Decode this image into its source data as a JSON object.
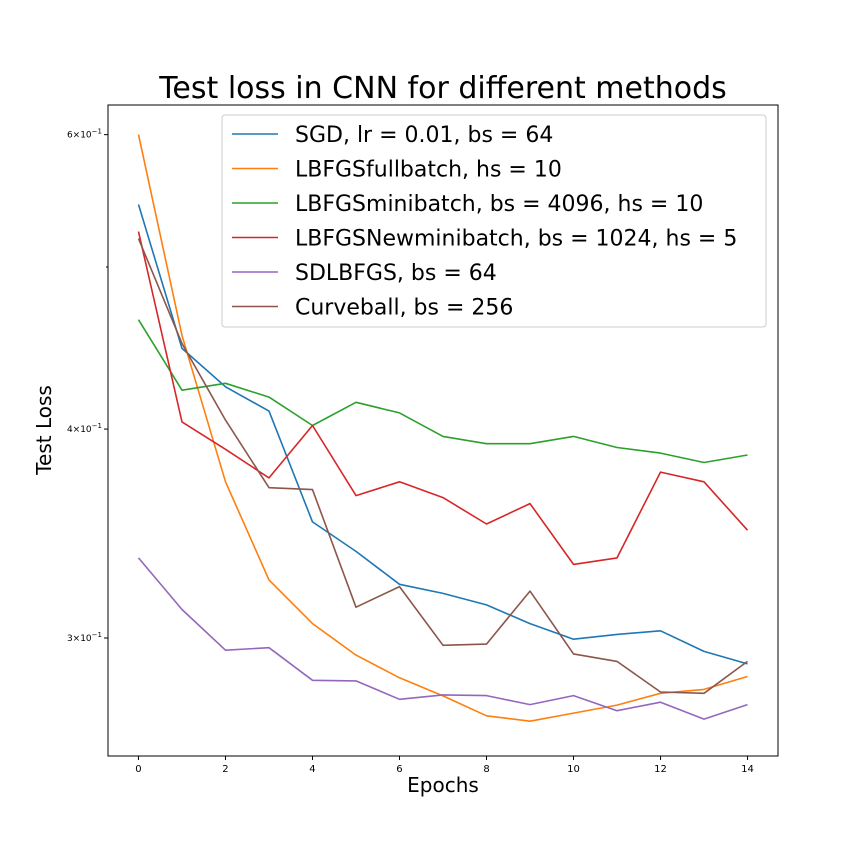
{
  "chart_data": {
    "type": "line",
    "title": "Test loss in CNN for different methods",
    "xlabel": "Epochs",
    "ylabel": "Test Loss",
    "y_scale": "log",
    "xlim": [
      -0.7,
      14.7
    ],
    "ylim": [
      0.255,
      0.625
    ],
    "grid": false,
    "legend_position": "top-right",
    "x_ticks": [
      0,
      2,
      4,
      6,
      8,
      10,
      12,
      14
    ],
    "x_tick_labels": [
      "0",
      "2",
      "4",
      "6",
      "8",
      "10",
      "12",
      "14"
    ],
    "y_major_ticks": [
      {
        "value": 0.3,
        "label_base": "3×10",
        "label_exp": "−1"
      },
      {
        "value": 0.4,
        "label_base": "4×10",
        "label_exp": "−1"
      },
      {
        "value": 0.6,
        "label_base": "6×10",
        "label_exp": "−1"
      }
    ],
    "y_minor_ticks": [
      0.5
    ],
    "x": [
      0,
      1,
      2,
      3,
      4,
      5,
      6,
      7,
      8,
      9,
      10,
      11,
      12,
      13,
      14
    ],
    "series": [
      {
        "name": "SGD, lr = 0.01, bs = 64",
        "color": "#1f77b4",
        "values": [
          0.545,
          0.447,
          0.424,
          0.41,
          0.352,
          0.338,
          0.323,
          0.319,
          0.314,
          0.306,
          0.2995,
          0.3015,
          0.303,
          0.2945,
          0.2895
        ]
      },
      {
        "name": "LBFGSfullbatch, hs = 10",
        "color": "#ff7f0e",
        "values": [
          0.6,
          0.455,
          0.372,
          0.325,
          0.306,
          0.293,
          0.284,
          0.277,
          0.2695,
          0.2675,
          0.2705,
          0.2735,
          0.278,
          0.2795,
          0.2845
        ]
      },
      {
        "name": "LBFGSminibatch, bs = 4096, hs = 10",
        "color": "#2ca02c",
        "values": [
          0.465,
          0.422,
          0.426,
          0.418,
          0.402,
          0.415,
          0.409,
          0.396,
          0.392,
          0.392,
          0.396,
          0.39,
          0.387,
          0.382,
          0.386
        ]
      },
      {
        "name": "LBFGSNewminibatch, bs = 1024, hs = 5",
        "color": "#d62728",
        "values": [
          0.525,
          0.404,
          0.389,
          0.374,
          0.402,
          0.365,
          0.372,
          0.364,
          0.351,
          0.361,
          0.332,
          0.335,
          0.377,
          0.372,
          0.348
        ]
      },
      {
        "name": "SDLBFGS, bs = 64",
        "color": "#9467bd",
        "values": [
          0.335,
          0.312,
          0.295,
          0.296,
          0.283,
          0.2828,
          0.2757,
          0.2774,
          0.2771,
          0.2737,
          0.2771,
          0.2714,
          0.2746,
          0.2683,
          0.2737
        ]
      },
      {
        "name": "Curveball, bs = 256",
        "color": "#8c564b",
        "values": [
          0.52,
          0.45,
          0.405,
          0.369,
          0.368,
          0.313,
          0.322,
          0.297,
          0.2975,
          0.32,
          0.2935,
          0.2905,
          0.2785,
          0.278,
          0.2905
        ]
      }
    ]
  }
}
